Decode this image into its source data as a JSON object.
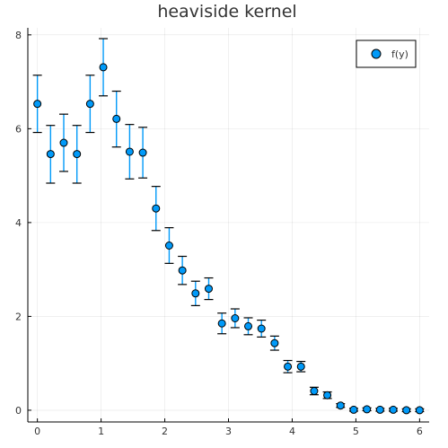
{
  "chart_data": {
    "type": "scatter",
    "title": "heaviside kernel",
    "xlabel": "",
    "ylabel": "",
    "xlim": [
      -0.15,
      6.15
    ],
    "ylim": [
      -0.25,
      8.15
    ],
    "xticks": [
      0,
      1,
      2,
      3,
      4,
      5,
      6
    ],
    "yticks": [
      0,
      2,
      4,
      6,
      8
    ],
    "grid": true,
    "legend_position": "top-right",
    "marker_color": "#009af9",
    "series": [
      {
        "name": "f(y)",
        "x": [
          0.0,
          0.2069,
          0.4138,
          0.6207,
          0.8276,
          1.0345,
          1.2414,
          1.4483,
          1.6552,
          1.8621,
          2.069,
          2.2759,
          2.4828,
          2.6897,
          2.8966,
          3.1034,
          3.3103,
          3.5172,
          3.7241,
          3.931,
          4.1379,
          4.3448,
          4.5517,
          4.7586,
          4.9655,
          5.1724,
          5.3793,
          5.5862,
          5.7931,
          6.0
        ],
        "y": [
          6.53,
          5.46,
          5.7,
          5.46,
          6.53,
          7.31,
          6.21,
          5.51,
          5.49,
          4.3,
          3.51,
          2.98,
          2.49,
          2.59,
          1.85,
          1.96,
          1.79,
          1.74,
          1.43,
          0.93,
          0.93,
          0.41,
          0.32,
          0.1,
          0.01,
          0.02,
          0.01,
          0.01,
          0.0,
          0.0
        ],
        "err_low": [
          5.92,
          4.84,
          5.09,
          4.84,
          5.92,
          6.7,
          5.61,
          4.93,
          4.95,
          3.83,
          3.13,
          2.68,
          2.23,
          2.36,
          1.63,
          1.76,
          1.61,
          1.56,
          1.28,
          0.8,
          0.82,
          0.33,
          0.25,
          0.06,
          -0.02,
          -0.01,
          -0.02,
          -0.02,
          -0.03,
          -0.03
        ],
        "err_high": [
          7.14,
          6.07,
          6.31,
          6.07,
          7.14,
          7.92,
          6.8,
          6.09,
          6.03,
          4.77,
          3.89,
          3.28,
          2.75,
          2.82,
          2.07,
          2.16,
          1.97,
          1.92,
          1.58,
          1.06,
          1.04,
          0.49,
          0.39,
          0.14,
          0.04,
          0.05,
          0.04,
          0.04,
          0.03,
          0.03
        ]
      }
    ]
  }
}
